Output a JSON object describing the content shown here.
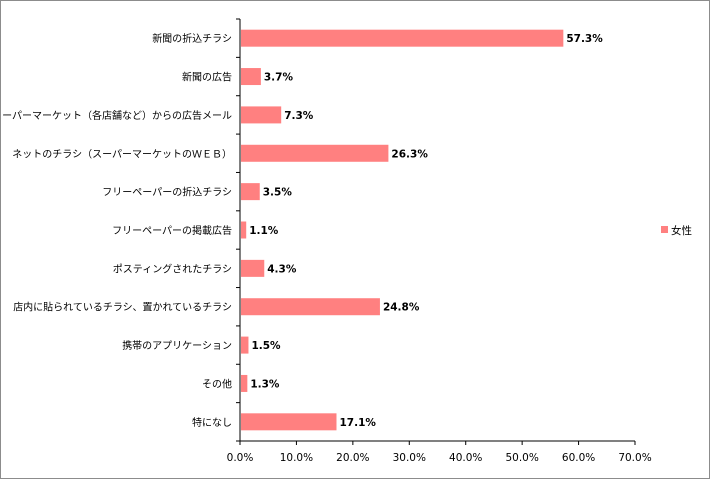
{
  "chart_data": {
    "type": "bar",
    "orientation": "horizontal",
    "categories": [
      "新聞の折込チラシ",
      "新聞の広告",
      "スーパーマーケット（各店舗など）からの広告メール",
      "ネットのチラシ（スーパーマーケットのＷＥＢ）",
      "フリーペーパーの折込チラシ",
      "フリーペーパーの掲載広告",
      "ポスティングされたチラシ",
      "店内に貼られているチラシ、置かれているチラシ",
      "携帯のアプリケーション",
      "その他",
      "特になし"
    ],
    "series": [
      {
        "name": "女性",
        "color": "#ff8080",
        "values": [
          57.3,
          3.7,
          7.3,
          26.3,
          3.5,
          1.1,
          4.3,
          24.8,
          1.5,
          1.3,
          17.1
        ],
        "labels": [
          "57.3%",
          "3.7%",
          "7.3%",
          "26.3%",
          "3.5%",
          "1.1%",
          "4.3%",
          "24.8%",
          "1.5%",
          "1.3%",
          "17.1%"
        ]
      }
    ],
    "xlim": [
      0,
      70
    ],
    "xticks": [
      "0.0%",
      "10.0%",
      "20.0%",
      "30.0%",
      "40.0%",
      "50.0%",
      "60.0%",
      "70.0%"
    ],
    "grid": false,
    "legend": "right"
  }
}
